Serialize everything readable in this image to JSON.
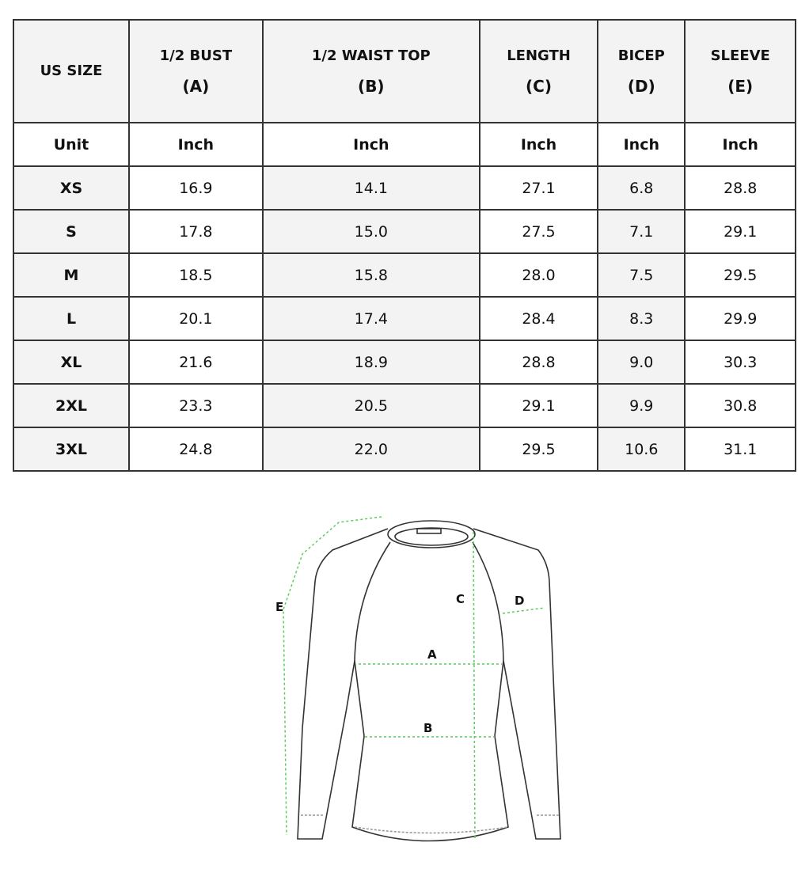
{
  "table": {
    "headers": [
      {
        "line1": "US SIZE",
        "line2": ""
      },
      {
        "line1": "1/2 BUST",
        "line2": "(A)"
      },
      {
        "line1": "1/2 WAIST TOP",
        "line2": "(B)"
      },
      {
        "line1": "LENGTH",
        "line2": "(C)"
      },
      {
        "line1": "BICEP",
        "line2": "(D)"
      },
      {
        "line1": "SLEEVE",
        "line2": "(E)"
      }
    ],
    "units": [
      "Unit",
      "Inch",
      "Inch",
      "Inch",
      "Inch",
      "Inch"
    ],
    "rows": [
      [
        "XS",
        "16.9",
        "14.1",
        "27.1",
        "6.8",
        "28.8"
      ],
      [
        "S",
        "17.8",
        "15.0",
        "27.5",
        "7.1",
        "29.1"
      ],
      [
        "M",
        "18.5",
        "15.8",
        "28.0",
        "7.5",
        "29.5"
      ],
      [
        "L",
        "20.1",
        "17.4",
        "28.4",
        "8.3",
        "29.9"
      ],
      [
        "XL",
        "21.6",
        "18.9",
        "28.8",
        "9.0",
        "30.3"
      ],
      [
        "2XL",
        "23.3",
        "20.5",
        "29.1",
        "9.9",
        "30.8"
      ],
      [
        "3XL",
        "24.8",
        "22.0",
        "29.5",
        "10.6",
        "31.1"
      ]
    ]
  },
  "diagram": {
    "labels": {
      "a": "A",
      "b": "B",
      "c": "C",
      "d": "D",
      "e": "E"
    },
    "measure_color": "#5ccc5c",
    "outline_color": "#333333"
  }
}
